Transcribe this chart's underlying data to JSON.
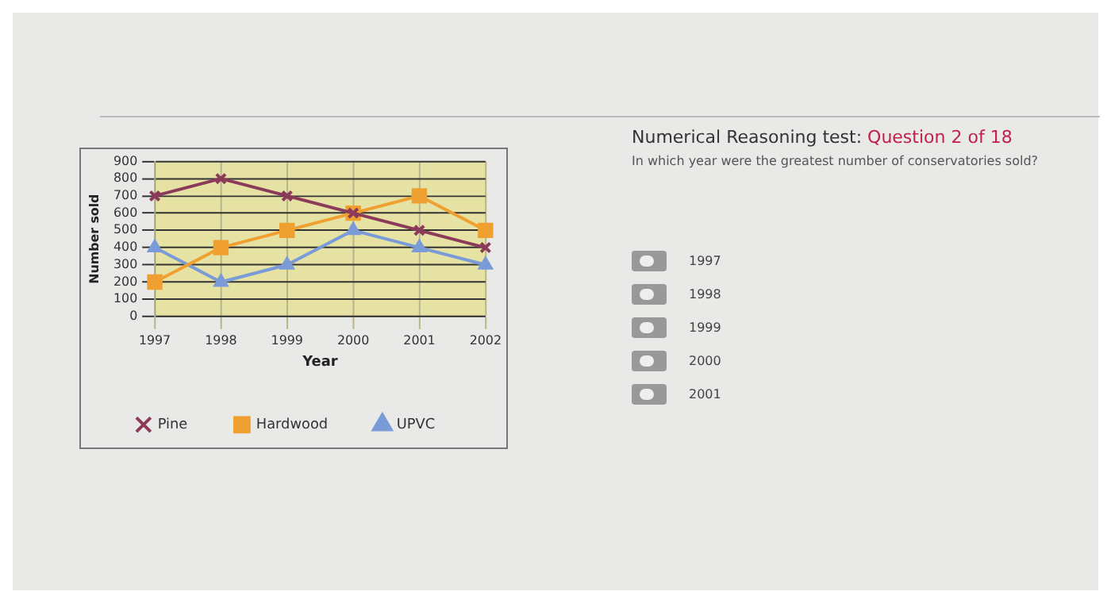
{
  "chart_data": {
    "type": "line",
    "xlabel": "Year",
    "ylabel": "Number sold",
    "categories": [
      "1997",
      "1998",
      "1999",
      "2000",
      "2001",
      "2002"
    ],
    "series": [
      {
        "name": "Pine",
        "color": "#8b3a5a",
        "marker": "cross",
        "values": [
          700,
          800,
          700,
          600,
          500,
          400
        ]
      },
      {
        "name": "Hardwood",
        "color": "#f0a030",
        "marker": "square",
        "values": [
          200,
          400,
          500,
          600,
          700,
          500
        ]
      },
      {
        "name": "UPVC",
        "color": "#7a9ad8",
        "marker": "triangle",
        "values": [
          400,
          200,
          300,
          500,
          400,
          300
        ]
      }
    ],
    "ylim": [
      0,
      900
    ],
    "yticks": [
      0,
      100,
      200,
      300,
      400,
      500,
      600,
      700,
      800,
      900
    ],
    "grid": true,
    "legend": "bottom",
    "line_style": "solid",
    "annotations": [
      "Numerical Reasoning test:",
      "Question 2 of 18",
      "In which year were the greatest number of conservatories sold?",
      "1997",
      "1998",
      "1999",
      "2000",
      "2001"
    ]
  }
}
